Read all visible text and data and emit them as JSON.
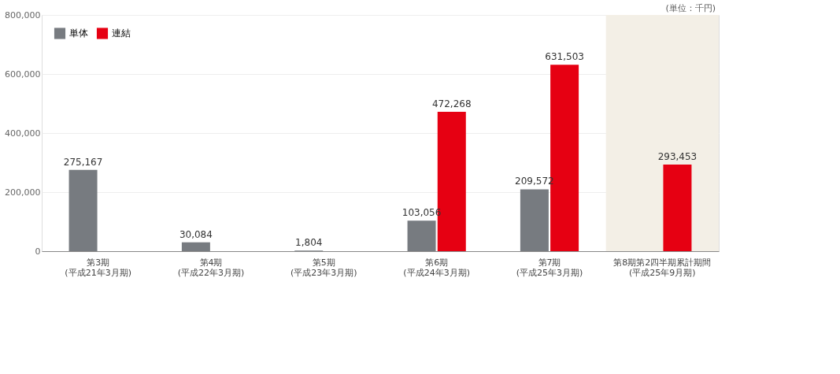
{
  "chart_data": {
    "type": "bar",
    "categories": [
      "第3期\n(平成21年3月期)",
      "第4期\n(平成22年3月期)",
      "第5期\n(平成23年3月期)",
      "第6期\n(平成24年3月期)",
      "第7期\n(平成25年3月期)",
      "第8期第2四半期累計期間\n(平成25年9月期)"
    ],
    "series": [
      {
        "name": "単体",
        "color": "#777b80",
        "values": [
          275167,
          30084,
          1804,
          103056,
          209572,
          null
        ],
        "value_labels": [
          "275,167",
          "30,084",
          "1,804",
          "103,056",
          "209,572",
          null
        ]
      },
      {
        "name": "連結",
        "color": "#e60012",
        "values": [
          null,
          null,
          null,
          472268,
          631503,
          293453
        ],
        "value_labels": [
          null,
          null,
          null,
          "472,268",
          "631,503",
          "293,453"
        ]
      }
    ],
    "ylim": [
      0,
      800000
    ],
    "yticks": [
      {
        "value": 0,
        "label": "0"
      },
      {
        "value": 200000,
        "label": "200,000"
      },
      {
        "value": 400000,
        "label": "400,000"
      },
      {
        "value": 600000,
        "label": "600,000"
      },
      {
        "value": 800000,
        "label": "800,000"
      }
    ],
    "grid": "y",
    "legend": "top left",
    "bands": [
      {
        "axis": "x",
        "from": "第8期第2四半期累計期間\n(平成25年9月期)",
        "to": "第8期第2四半期累計期間\n(平成25年9月期)",
        "color": "#f3efe6"
      }
    ],
    "annotations": [
      "(単位：千円)"
    ]
  }
}
